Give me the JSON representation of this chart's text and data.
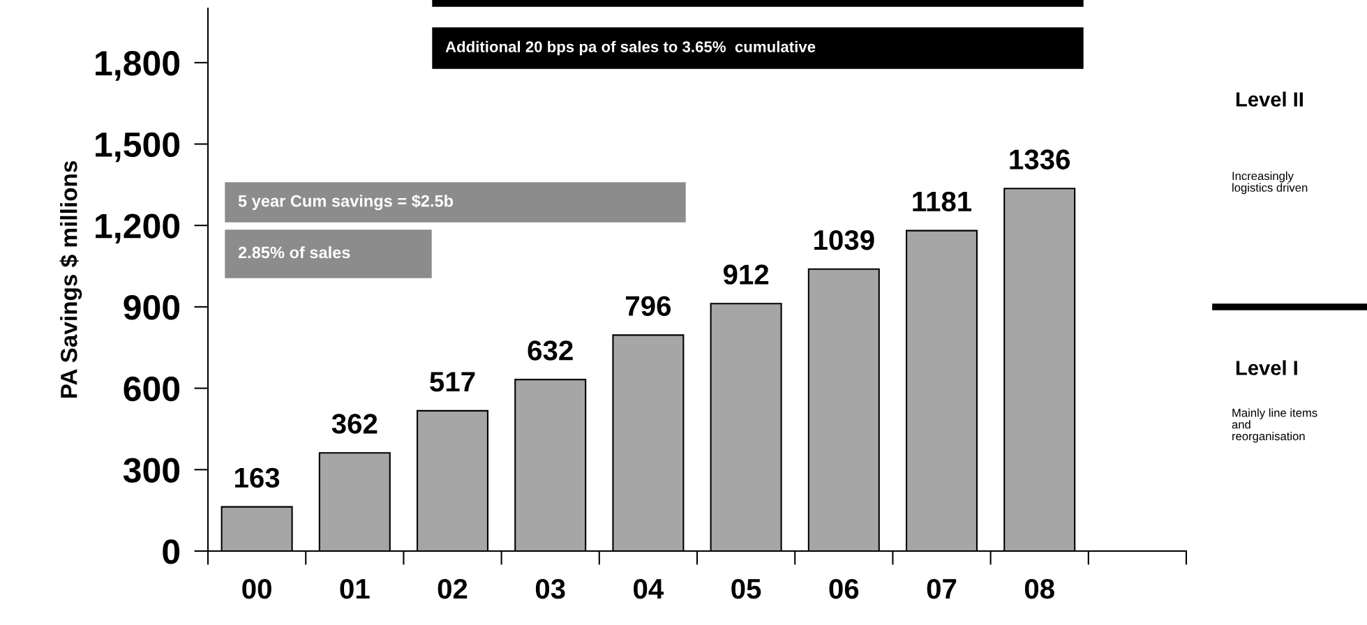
{
  "chart_data": {
    "type": "bar",
    "ylabel": "PA Savings $ millions",
    "categories": [
      "00",
      "01",
      "02",
      "03",
      "04",
      "05",
      "06",
      "07",
      "08",
      null
    ],
    "values": [
      163,
      362,
      517,
      632,
      796,
      912,
      1039,
      1181,
      1336,
      null
    ],
    "color": "#a6a6a6",
    "ylim": [
      0,
      2000
    ],
    "yticks": [
      0,
      300,
      600,
      900,
      {
        "value": 1200,
        "label": "1,200"
      },
      {
        "value": 1500,
        "label": "1,500"
      },
      {
        "value": 1800,
        "label": "1,800"
      }
    ],
    "data_labels": true,
    "grid": false,
    "annotations": [
      "Additional 20 bps pa of sales to 3.65%  cumulative",
      "5 year Cum savings = $2.5b",
      "2.85% of sales",
      "Level II",
      "Increasingly\nlogistics driven",
      "Level I",
      "Mainly line items\nand\nreorganisation"
    ]
  }
}
